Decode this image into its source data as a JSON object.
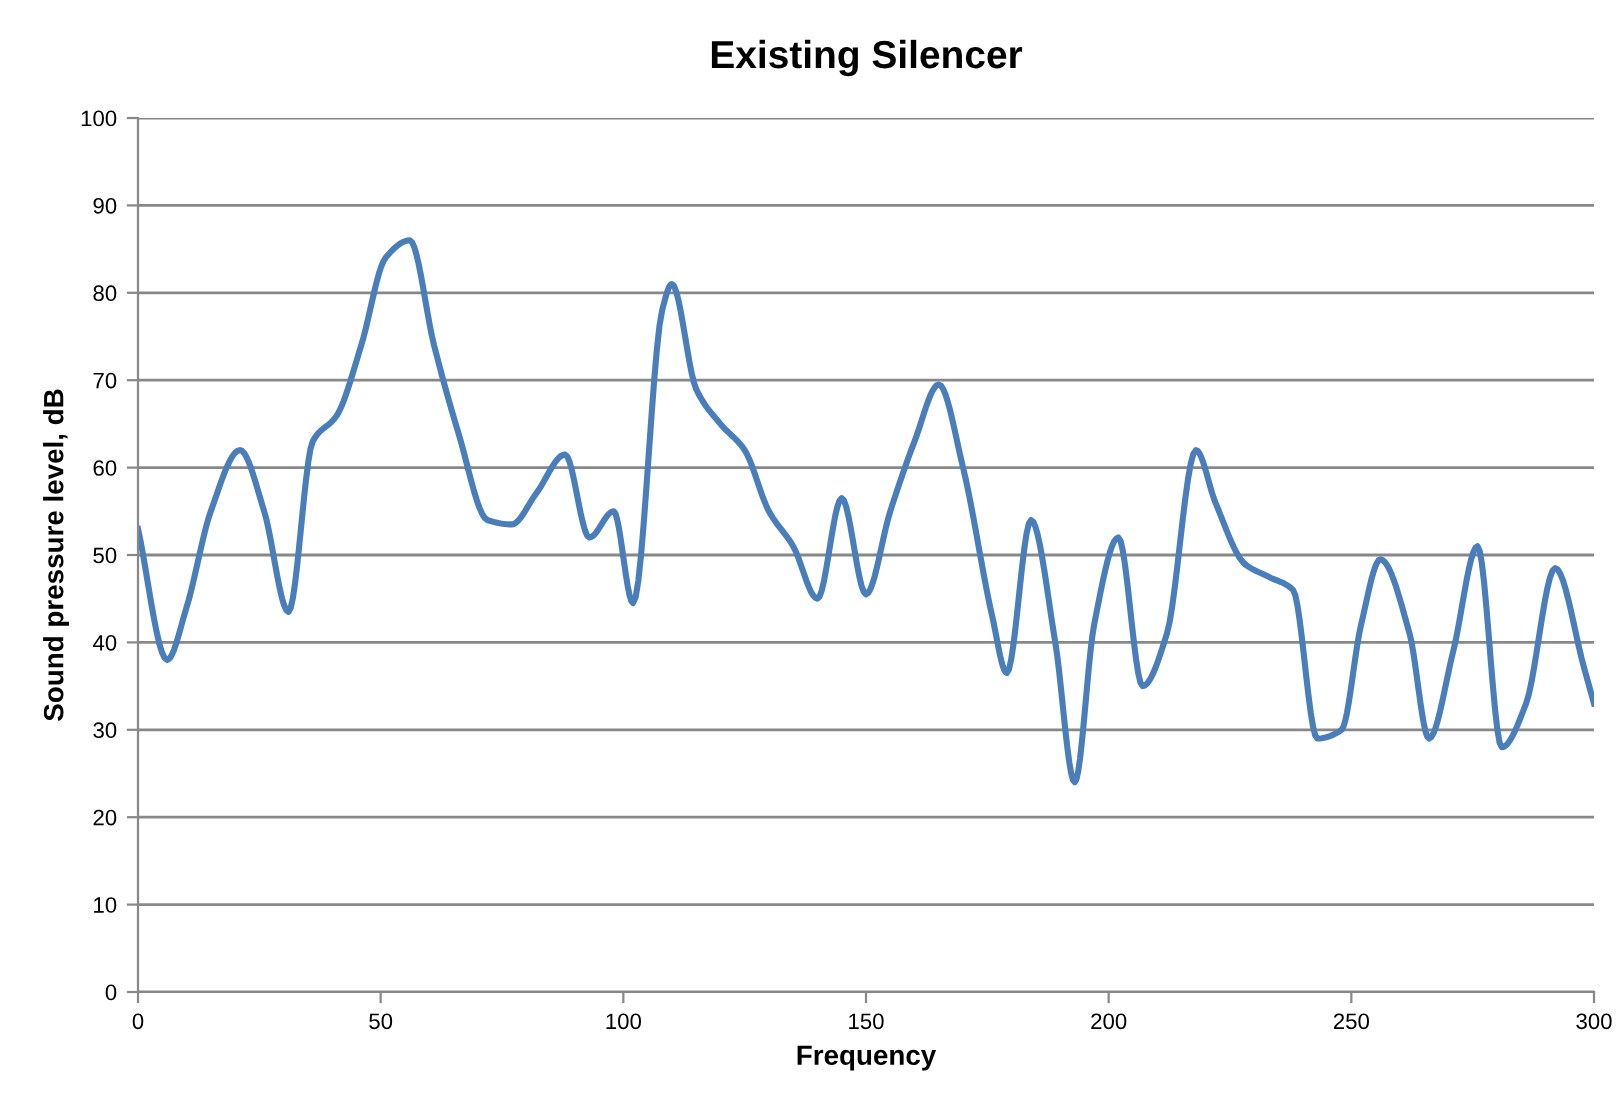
{
  "chart_data": {
    "type": "line",
    "title": "Existing Silencer",
    "xlabel": "Frequency",
    "ylabel": "Sound pressure level, dB",
    "x": [
      0,
      6,
      10,
      15,
      21,
      26,
      31,
      36,
      41,
      46,
      51,
      56,
      61,
      66,
      72,
      77,
      82,
      88,
      93,
      98,
      102,
      108,
      110,
      115,
      120,
      125,
      130,
      135,
      140,
      145,
      150,
      155,
      160,
      165,
      170,
      176,
      179,
      184,
      189,
      193,
      197,
      202,
      207,
      212,
      218,
      222,
      228,
      233,
      238,
      243,
      248,
      252,
      256,
      262,
      266,
      271,
      276,
      281,
      286,
      292,
      298,
      300
    ],
    "series": [
      {
        "color": "#4a7ebb",
        "values": [
          53,
          38,
          44,
          55,
          62,
          55,
          43.5,
          63,
          66,
          74,
          84,
          86,
          74,
          64,
          54,
          53.5,
          57,
          61.5,
          52,
          55,
          44.5,
          78,
          81,
          69,
          65,
          62,
          55,
          51,
          45,
          56.5,
          45.5,
          55,
          63,
          69.5,
          60,
          43,
          36.5,
          54,
          40,
          24,
          42,
          52,
          35,
          41,
          62,
          56,
          49,
          47.5,
          46,
          29,
          30,
          42,
          49.5,
          41,
          29,
          39,
          51,
          28,
          33,
          48.5,
          37,
          33
        ]
      }
    ],
    "xlim": [
      0,
      300
    ],
    "xticks": [
      0,
      50,
      100,
      150,
      200,
      250,
      300
    ],
    "ylim": [
      0,
      100
    ],
    "yticks": [
      0,
      10,
      20,
      30,
      40,
      50,
      60,
      70,
      80,
      90,
      100
    ],
    "grid": "y",
    "legend": false,
    "marker": "none",
    "line_style": "solid"
  }
}
